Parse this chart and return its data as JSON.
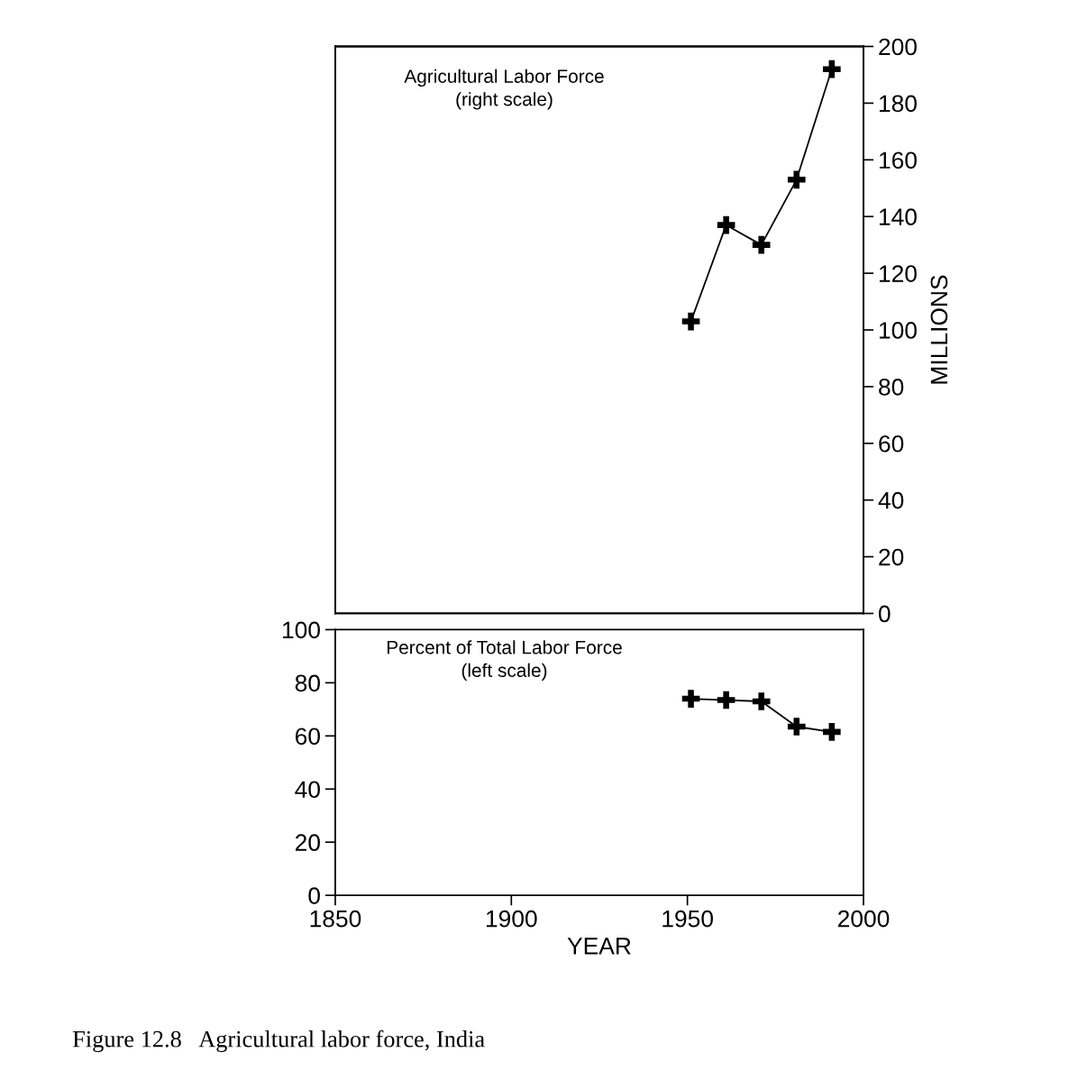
{
  "chart_data": [
    {
      "type": "line",
      "annotations": [
        "Agricultural Labor Force\n(right scale)"
      ],
      "y2label": "MILLIONS",
      "marker": "cross",
      "line_style": "solid",
      "grid": false,
      "tick_labels": "y2",
      "xlim": [
        1850,
        2000
      ],
      "y2lim": [
        0,
        200
      ],
      "y2ticks": [
        0,
        20,
        40,
        60,
        80,
        100,
        120,
        140,
        160,
        180,
        200
      ],
      "series": [
        {
          "axis": "y2",
          "color": "#000000",
          "x": [
            1951,
            1961,
            1971,
            1981,
            1991
          ],
          "values": [
            103,
            137,
            130,
            153,
            192
          ]
        }
      ]
    },
    {
      "type": "line",
      "annotations": [
        "Percent of Total Labor Force\n(left scale)",
        "Figure 12.8   Agricultural labor force, India"
      ],
      "xlabel": "YEAR",
      "marker": "cross",
      "line_style": "solid",
      "grid": false,
      "xlim": [
        1850,
        2000
      ],
      "xticks": [
        1850,
        1900,
        1950,
        2000
      ],
      "ylim": [
        0,
        100
      ],
      "yticks": [
        0,
        20,
        40,
        60,
        80,
        100
      ],
      "series": [
        {
          "color": "#000000",
          "x": [
            1951,
            1961,
            1971,
            1981,
            1991
          ],
          "values": [
            74,
            73.5,
            73,
            63.5,
            61.5
          ]
        }
      ]
    }
  ]
}
